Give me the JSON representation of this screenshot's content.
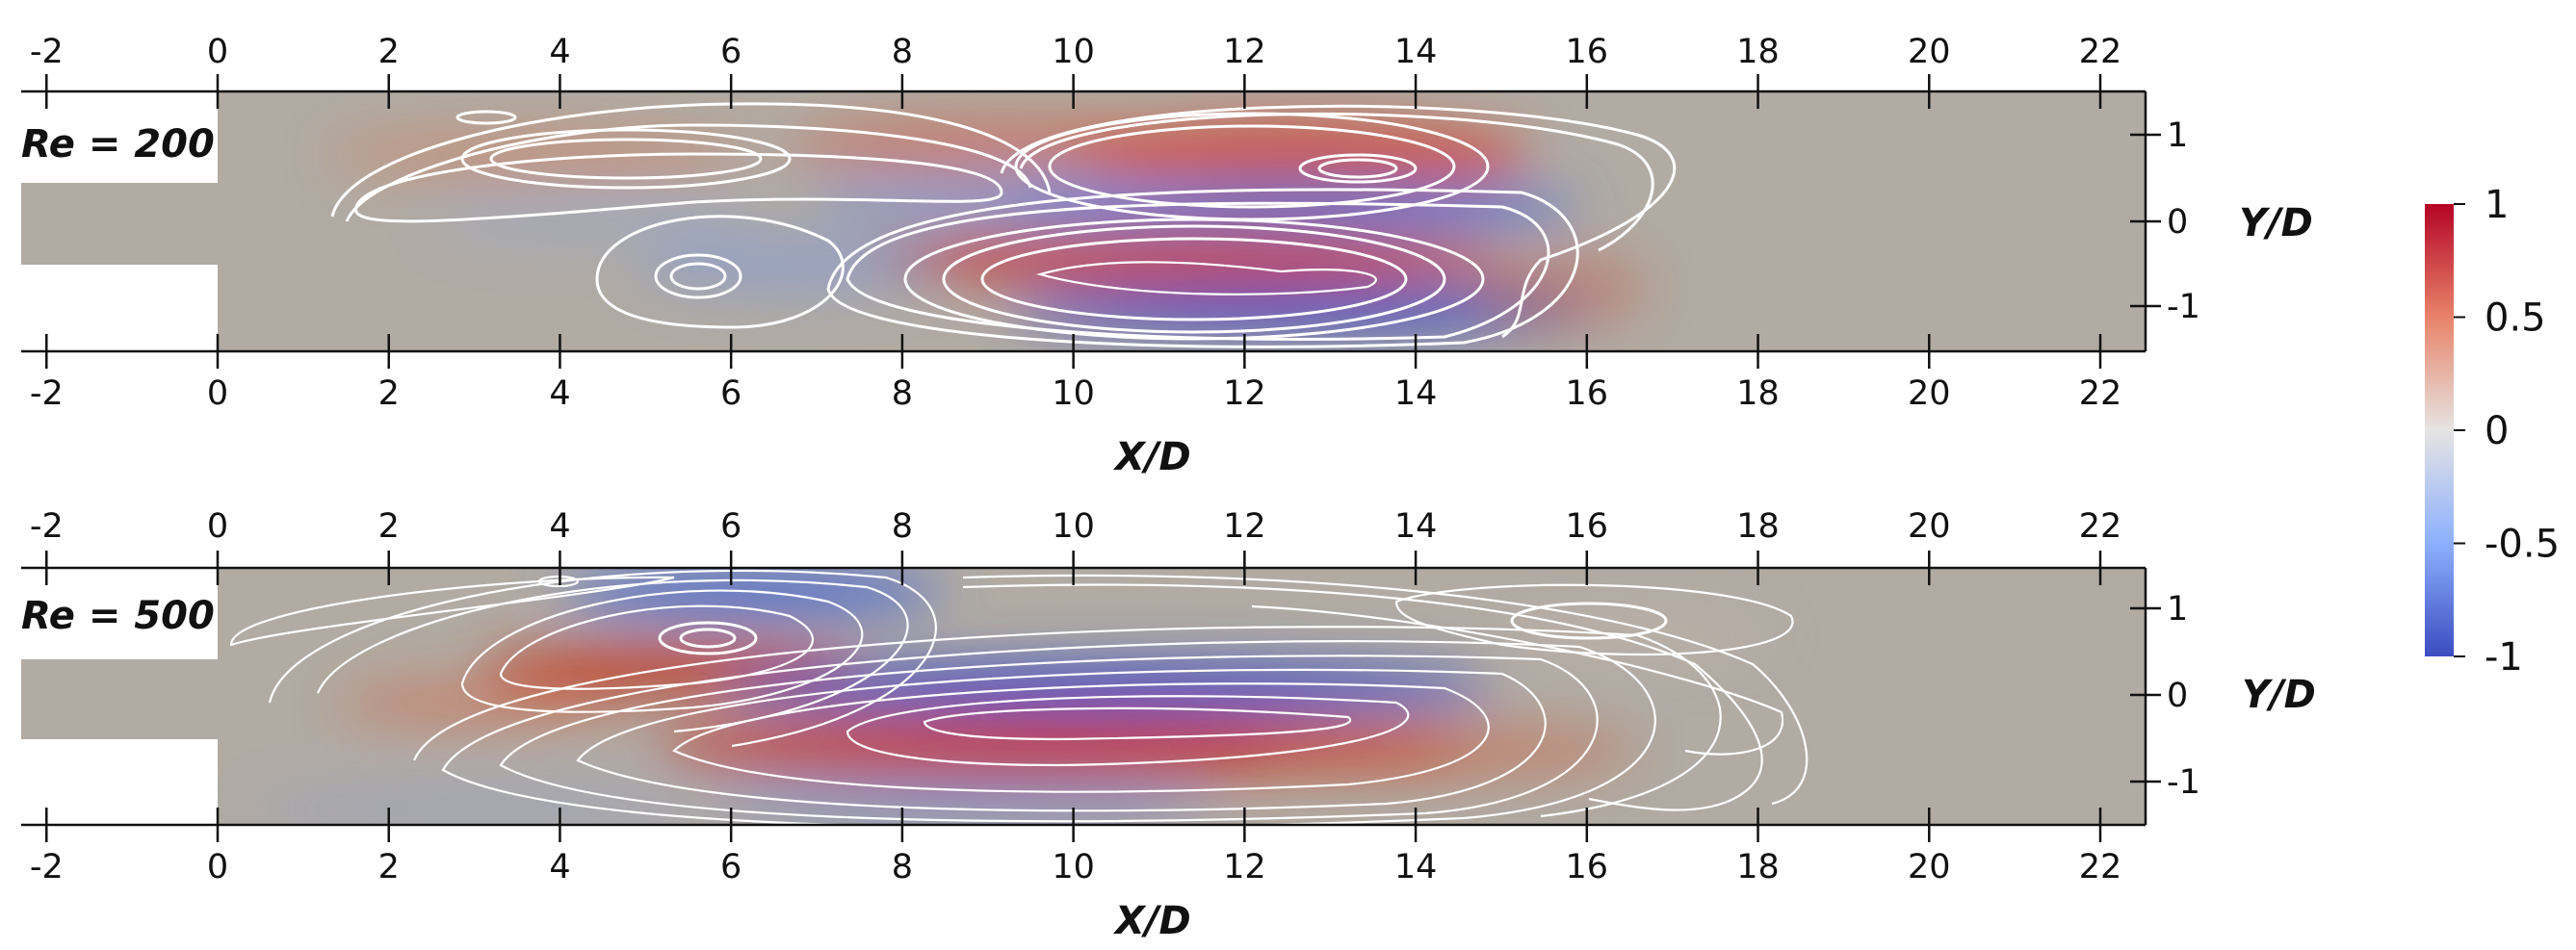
{
  "panels": [
    {
      "re_label": "Re = 200",
      "x_axis_title": "X/D",
      "y_axis_title": "Y/D",
      "x_ticks": [
        "-2",
        "0",
        "2",
        "4",
        "6",
        "8",
        "10",
        "12",
        "14",
        "16",
        "18",
        "20",
        "22"
      ],
      "y_ticks": [
        "1",
        "0",
        "-1"
      ]
    },
    {
      "re_label": "Re = 500",
      "x_axis_title": "X/D",
      "y_axis_title": "Y/D",
      "x_ticks": [
        "-2",
        "0",
        "2",
        "4",
        "6",
        "8",
        "10",
        "12",
        "14",
        "16",
        "18",
        "20",
        "22"
      ],
      "y_ticks": [
        "1",
        "0",
        "-1"
      ]
    }
  ],
  "colorbar": {
    "ticks": [
      "1",
      "0.5",
      "0",
      "-0.5",
      "-1"
    ],
    "range": [
      -1,
      1
    ],
    "colors": {
      "max": "#b40426",
      "mid": "#dddddd",
      "min": "#3b4cc0"
    }
  },
  "background_color": "#b1aba4"
}
